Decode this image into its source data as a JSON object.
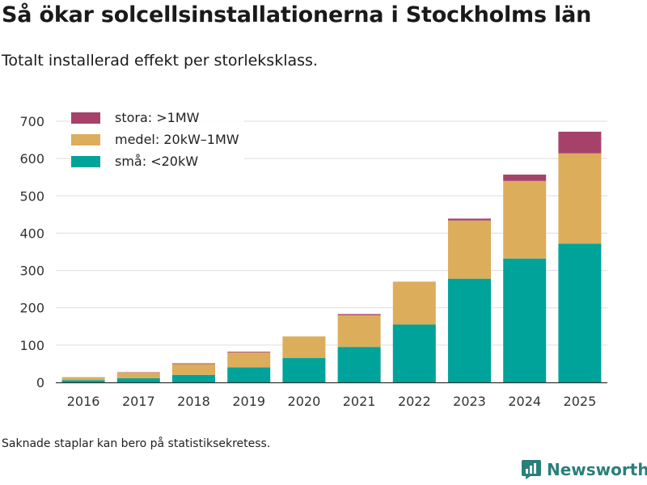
{
  "title": "Så ökar solcellsinstallationerna i Stockholms län",
  "subtitle": "Totalt installerad effekt per storleksklass.",
  "footnote": "Saknade staplar kan bero på statistiksekretess.",
  "brand": {
    "name": "Newsworthy",
    "icon": "newsworthy-logo-icon",
    "color": "#2a7f7a"
  },
  "chart_data": {
    "type": "bar",
    "stacked": true,
    "title": "Så ökar solcellsinstallationerna i Stockholms län",
    "subtitle": "Totalt installerad effekt per storleksklass.",
    "xlabel": "",
    "ylabel": "",
    "ylim": [
      0,
      700
    ],
    "yticks": [
      0,
      100,
      200,
      300,
      400,
      500,
      600,
      700
    ],
    "grid": true,
    "legend_position": "top-left",
    "categories": [
      "2016",
      "2017",
      "2018",
      "2019",
      "2020",
      "2021",
      "2022",
      "2023",
      "2024",
      "2025"
    ],
    "series": [
      {
        "name": "små: <20kW",
        "color": "#00a39a",
        "values": [
          6,
          11,
          20,
          40,
          65,
          95,
          155,
          278,
          332,
          372
        ]
      },
      {
        "name": "medel: 20kW–1MW",
        "color": "#dcad5b",
        "values": [
          8,
          15,
          29,
          40,
          58,
          85,
          115,
          156,
          208,
          242
        ]
      },
      {
        "name": "stora: >1MW",
        "color": "#a6426a",
        "values": [
          0,
          1,
          2,
          2,
          0,
          3,
          0,
          5,
          17,
          58
        ]
      }
    ]
  }
}
